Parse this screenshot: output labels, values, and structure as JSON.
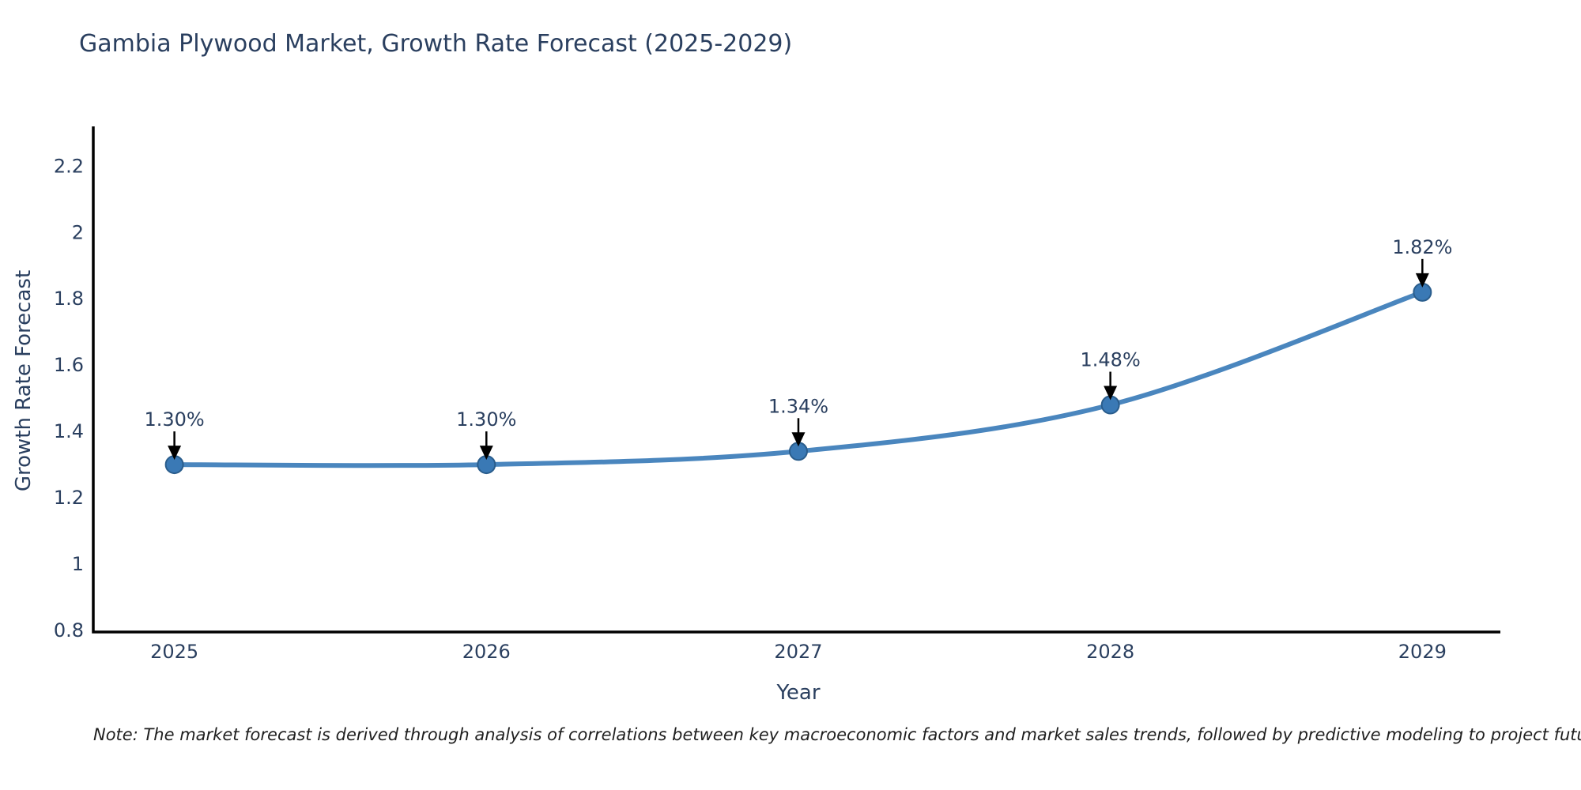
{
  "title": "Gambia Plywood Market, Growth Rate Forecast (2025-2029)",
  "note": "Note: The market forecast is derived through analysis of correlations between key macroeconomic factors and market sales trends, followed by predictive modeling to project future sales",
  "chart_data": {
    "type": "line",
    "title": "Gambia Plywood Market, Growth Rate Forecast (2025-2029)",
    "xlabel": "Year",
    "ylabel": "Growth Rate Forecast",
    "x": [
      2025,
      2026,
      2027,
      2028,
      2029
    ],
    "series": [
      {
        "name": "Growth Rate Forecast",
        "values": [
          1.3,
          1.3,
          1.34,
          1.48,
          1.82
        ]
      }
    ],
    "point_labels": [
      "1.30%",
      "1.30%",
      "1.34%",
      "1.48%",
      "1.82%"
    ],
    "xtick_labels": [
      "2025",
      "2026",
      "2027",
      "2028",
      "2029"
    ],
    "ytick_values": [
      0.8,
      1.0,
      1.2,
      1.4,
      1.6,
      1.8,
      2.0,
      2.2
    ],
    "ytick_labels": [
      "0.8",
      "1",
      "1.2",
      "1.4",
      "1.6",
      "1.8",
      "2",
      "2.2"
    ],
    "xlim": [
      2024.74,
      2029.25
    ],
    "ylim": [
      0.795,
      2.32
    ],
    "grid": false,
    "legend": false,
    "line_shape": "spline",
    "colors": {
      "line": "#4a86be",
      "marker_fill": "#3a79b5",
      "marker_edge": "#2a5d8c",
      "annotation_text": "#2a3f5f",
      "annotation_arrow": "#000000",
      "axis_line": "#000000",
      "tick_text": "#2a3f5f"
    }
  }
}
